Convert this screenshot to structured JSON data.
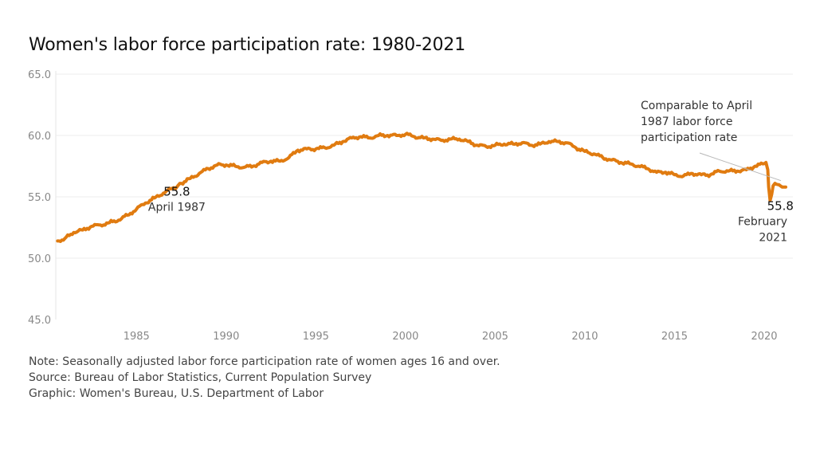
{
  "chart_data": {
    "type": "line",
    "title": "Women's labor force participation rate: 1980-2021",
    "xlabel": "",
    "ylabel": "",
    "xlim": [
      1980.5,
      2021.6
    ],
    "ylim": [
      45,
      65
    ],
    "y_ticks": [
      {
        "value": 45,
        "label": "45.0"
      },
      {
        "value": 50,
        "label": "50.0"
      },
      {
        "value": 55,
        "label": "55.0"
      },
      {
        "value": 60,
        "label": "60.0"
      },
      {
        "value": 65,
        "label": "65.0"
      }
    ],
    "x_ticks": [
      {
        "value": 1985,
        "label": "1985"
      },
      {
        "value": 1990,
        "label": "1990"
      },
      {
        "value": 1995,
        "label": "1995"
      },
      {
        "value": 2000,
        "label": "2000"
      },
      {
        "value": 2005,
        "label": "2005"
      },
      {
        "value": 2010,
        "label": "2010"
      },
      {
        "value": 2015,
        "label": "2015"
      },
      {
        "value": 2020,
        "label": "2020"
      }
    ],
    "grid": true,
    "line_color": "#E07B10",
    "series": [
      {
        "x": [
          1980.6,
          1981.0,
          1981.5,
          1982.0,
          1982.5,
          1983.0,
          1983.5,
          1984.0,
          1984.5,
          1985.0,
          1985.5,
          1986.0,
          1986.5,
          1987.0,
          1987.25,
          1987.5,
          1988.0,
          1988.5,
          1989.0,
          1989.5,
          1990.0,
          1990.5,
          1991.0,
          1991.5,
          1992.0,
          1992.5,
          1993.0,
          1993.5,
          1994.0,
          1994.5,
          1995.0,
          1995.5,
          1996.0,
          1996.5,
          1997.0,
          1997.5,
          1998.0,
          1998.5,
          1999.0,
          1999.5,
          2000.0,
          2000.5,
          2001.0,
          2001.5,
          2002.0,
          2002.5,
          2003.0,
          2003.5,
          2004.0,
          2004.5,
          2005.0,
          2005.5,
          2006.0,
          2006.5,
          2007.0,
          2007.5,
          2008.0,
          2008.5,
          2009.0,
          2009.5,
          2010.0,
          2010.5,
          2011.0,
          2011.5,
          2012.0,
          2012.5,
          2013.0,
          2013.5,
          2014.0,
          2014.5,
          2015.0,
          2015.5,
          2016.0,
          2016.5,
          2017.0,
          2017.5,
          2018.0,
          2018.5,
          2019.0,
          2019.5,
          2020.0,
          2020.1,
          2020.2,
          2020.25,
          2020.33,
          2020.42,
          2020.5,
          2020.6,
          2020.75,
          2020.9,
          2021.0,
          2021.1,
          2021.2
        ],
        "y": [
          51.4,
          51.6,
          52.1,
          52.3,
          52.6,
          52.7,
          52.9,
          53.1,
          53.5,
          54.0,
          54.5,
          54.9,
          55.3,
          55.7,
          55.8,
          56.1,
          56.5,
          56.9,
          57.3,
          57.6,
          57.6,
          57.5,
          57.4,
          57.5,
          57.8,
          57.9,
          57.9,
          58.2,
          58.8,
          58.9,
          58.9,
          59.0,
          59.2,
          59.5,
          59.8,
          59.9,
          59.8,
          60.0,
          60.0,
          60.0,
          60.1,
          59.9,
          59.8,
          59.7,
          59.6,
          59.7,
          59.7,
          59.5,
          59.2,
          59.1,
          59.2,
          59.3,
          59.3,
          59.4,
          59.2,
          59.3,
          59.5,
          59.5,
          59.4,
          59.0,
          58.7,
          58.5,
          58.2,
          58.0,
          57.8,
          57.7,
          57.5,
          57.3,
          57.0,
          57.0,
          56.8,
          56.7,
          56.9,
          56.8,
          56.8,
          57.1,
          57.1,
          57.1,
          57.2,
          57.5,
          57.7,
          57.8,
          57.2,
          55.8,
          54.7,
          55.2,
          55.9,
          56.1,
          56.0,
          55.9,
          55.8,
          55.8,
          55.8
        ]
      }
    ],
    "annotations": {
      "april_1987_value": "55.8",
      "april_1987_label": "April 1987",
      "feb_2021_value": "55.8",
      "feb_2021_label_line1": "February",
      "feb_2021_label_line2": "2021",
      "comparable_line1": "Comparable to April",
      "comparable_line2": "1987 labor force",
      "comparable_line3": "participation rate"
    }
  },
  "footer": {
    "note": "Note: Seasonally adjusted labor force participation rate of women ages 16 and over.",
    "source": "Source: Bureau of Labor Statistics, Current Population Survey",
    "graphic": "Graphic: Women's Bureau, U.S. Department of Labor"
  }
}
